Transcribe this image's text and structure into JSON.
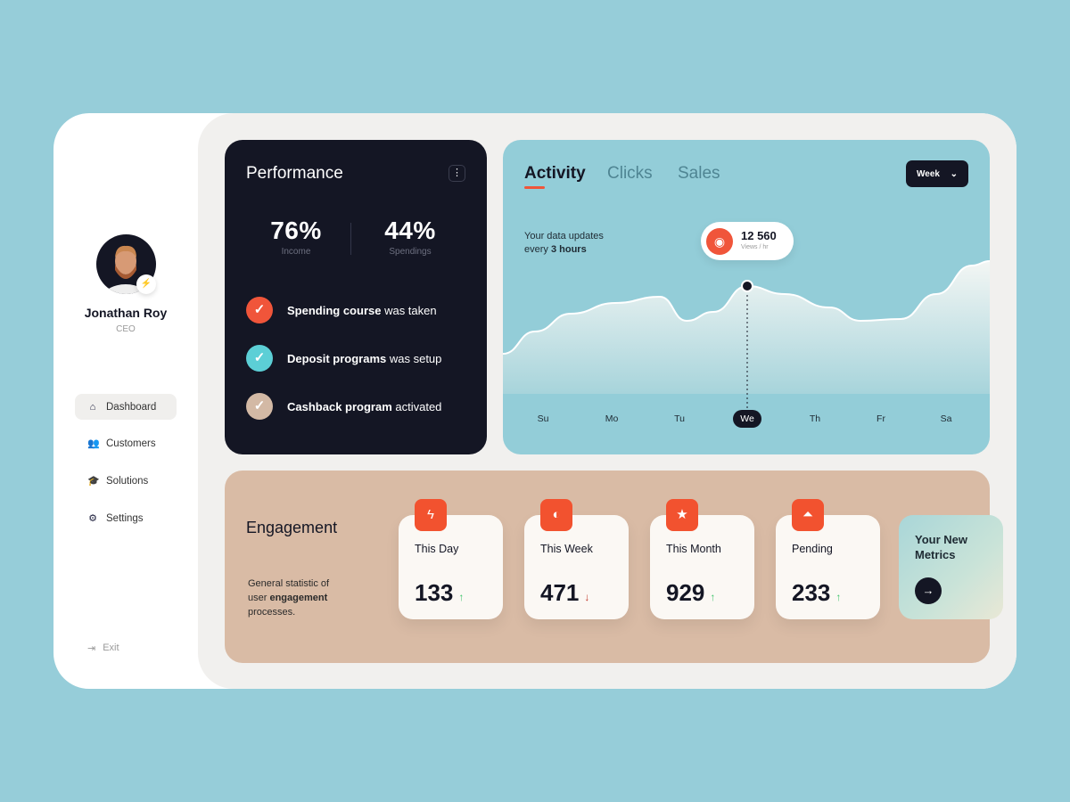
{
  "user": {
    "name": "Jonathan Roy",
    "role": "CEO"
  },
  "sidebar": {
    "items": [
      {
        "label": "Dashboard",
        "icon": "home-icon",
        "active": true
      },
      {
        "label": "Customers",
        "icon": "users-icon"
      },
      {
        "label": "Solutions",
        "icon": "graduation-cap-icon"
      },
      {
        "label": "Settings",
        "icon": "gear-icon"
      }
    ],
    "exit": "Exit"
  },
  "performance": {
    "title": "Performance",
    "stats": [
      {
        "value": "76%",
        "label": "Income"
      },
      {
        "value": "44%",
        "label": "Spendings"
      }
    ],
    "tasks": [
      {
        "bold": "Spending course",
        "rest": " was taken",
        "color": "#f0553a"
      },
      {
        "bold": "Deposit programs",
        "rest": " was setup",
        "color": "#5ccfd6"
      },
      {
        "bold": "Cashback program",
        "rest": " activated",
        "color": "#d3b9a5"
      }
    ]
  },
  "activity": {
    "tabs": [
      "Activity",
      "Clicks",
      "Sales"
    ],
    "period": "Week",
    "update_text": "Your data updates",
    "update_prefix": "every ",
    "update_bold": "3 hours",
    "tooltip": {
      "value": "12 560",
      "unit": "Views / hr"
    },
    "days": [
      "Su",
      "Mo",
      "Tu",
      "We",
      "Th",
      "Fr",
      "Sa"
    ],
    "selected_day": "We"
  },
  "engagement": {
    "title": "Engagement",
    "desc_a": "General statistic of user ",
    "desc_b": "engagement",
    "desc_c": " processes.",
    "metrics": [
      {
        "label": "This Day",
        "value": "133",
        "trend": "up",
        "icon": "lightning-icon"
      },
      {
        "label": "This Week",
        "value": "471",
        "trend": "down",
        "icon": "half-circle-icon"
      },
      {
        "label": "This Month",
        "value": "929",
        "trend": "up",
        "icon": "star-icon"
      },
      {
        "label": "Pending",
        "value": "233",
        "trend": "up",
        "icon": "double-arrow-up-icon"
      }
    ],
    "new_metrics": "Your New Metrics"
  },
  "colors": {
    "accent": "#f0553a",
    "up": "#3cc36a",
    "down": "#c0392b",
    "dark": "#141624"
  }
}
